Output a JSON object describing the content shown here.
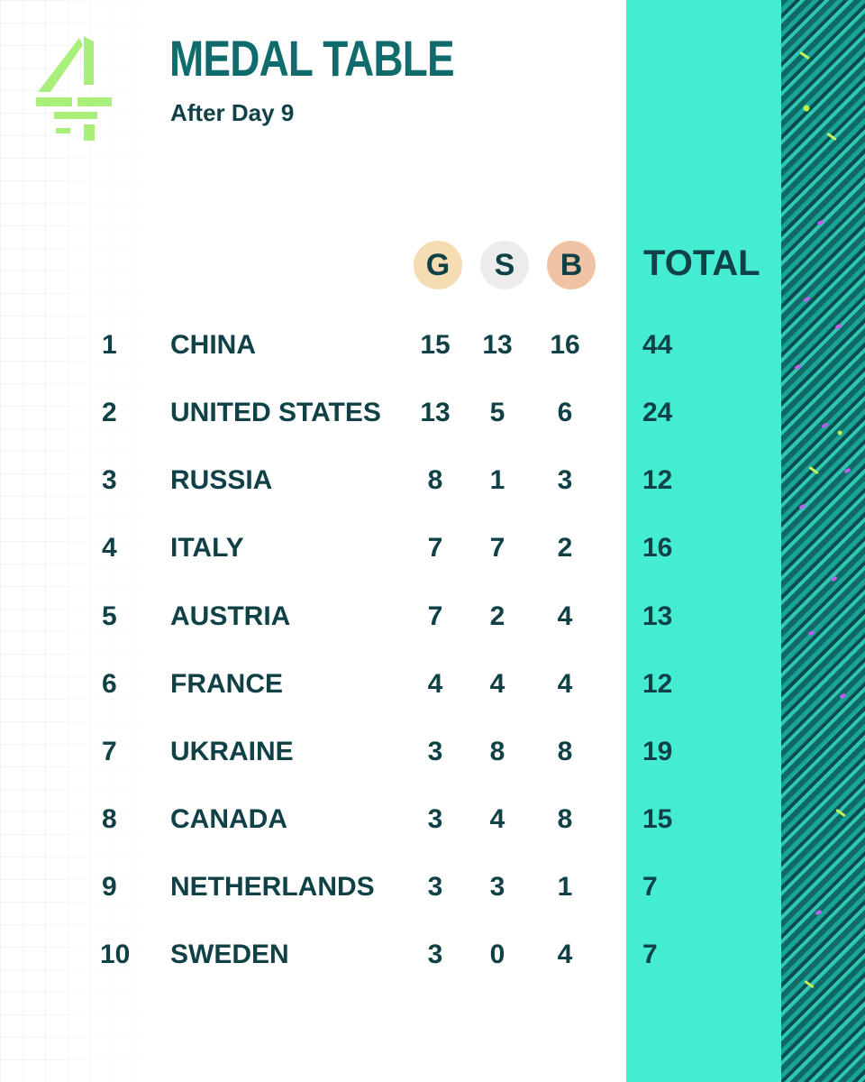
{
  "header": {
    "title": "MEDAL TABLE",
    "subtitle": "After Day 9",
    "logo_icon": "channel-4-logo"
  },
  "columns": {
    "gold": "G",
    "silver": "S",
    "bronze": "B",
    "total": "TOTAL"
  },
  "rows": [
    {
      "rank": "1",
      "country": "CHINA",
      "gold": "15",
      "silver": "13",
      "bronze": "16",
      "total": "44"
    },
    {
      "rank": "2",
      "country": "UNITED STATES",
      "gold": "13",
      "silver": "5",
      "bronze": "6",
      "total": "24"
    },
    {
      "rank": "3",
      "country": "RUSSIA",
      "gold": "8",
      "silver": "1",
      "bronze": "3",
      "total": "12"
    },
    {
      "rank": "4",
      "country": "ITALY",
      "gold": "7",
      "silver": "7",
      "bronze": "2",
      "total": "16"
    },
    {
      "rank": "5",
      "country": "AUSTRIA",
      "gold": "7",
      "silver": "2",
      "bronze": "4",
      "total": "13"
    },
    {
      "rank": "6",
      "country": "FRANCE",
      "gold": "4",
      "silver": "4",
      "bronze": "4",
      "total": "12"
    },
    {
      "rank": "7",
      "country": "UKRAINE",
      "gold": "3",
      "silver": "8",
      "bronze": "8",
      "total": "19"
    },
    {
      "rank": "8",
      "country": "CANADA",
      "gold": "3",
      "silver": "4",
      "bronze": "8",
      "total": "15"
    },
    {
      "rank": "9",
      "country": "NETHERLANDS",
      "gold": "3",
      "silver": "3",
      "bronze": "1",
      "total": "7"
    },
    {
      "rank": "10",
      "country": "SWEDEN",
      "gold": "3",
      "silver": "0",
      "bronze": "4",
      "total": "7"
    }
  ],
  "colors": {
    "accent_teal": "#44ecd2",
    "title_teal": "#106b6c",
    "text_dark": "#0f4146",
    "gold_badge": "#f6dcb3",
    "silver_badge": "#ececec",
    "bronze_badge": "#f0c3a4",
    "logo_green": "#a8f07a"
  }
}
